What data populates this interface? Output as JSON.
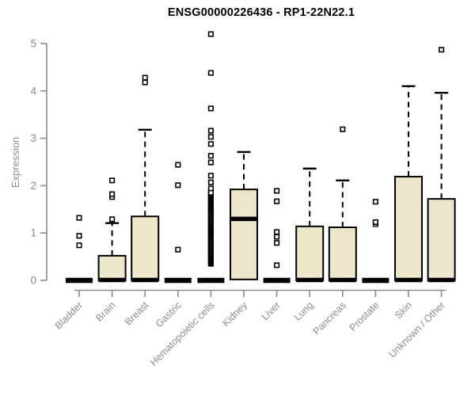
{
  "title": "ENSG00000226436 - RP1-22N22.1",
  "y_axis": {
    "label": "Expression"
  },
  "colors": {
    "background": "#ffffff",
    "box_fill": "#ede6cb",
    "box_stroke": "#000000",
    "median": "#000000",
    "whisker": "#000000",
    "outlier_stroke": "#000000",
    "axis": "#8c8c8c",
    "tick_label": "#8c8c8c",
    "title": "#000000"
  },
  "chart_data": {
    "type": "boxplot",
    "title": "ENSG00000226436 - RP1-22N22.1",
    "xlabel": "",
    "ylabel": "Expression",
    "ylim": [
      0,
      5.25
    ],
    "yticks": [
      0,
      1,
      2,
      3,
      4,
      5
    ],
    "grid": false,
    "legend": false,
    "categories": [
      "Bladder",
      "Brain",
      "Breast",
      "Gastric",
      "Hematopoietic cells",
      "Kidney",
      "Liver",
      "Lung",
      "Pancreas",
      "Prostate",
      "Skin",
      "Unknown / Other"
    ],
    "boxes": [
      {
        "category": "Bladder",
        "q1": 0,
        "median": 0,
        "q3": 0.04,
        "whisker_low": null,
        "whisker_high": null,
        "collapsed": true,
        "outliers": [
          0.74,
          0.94,
          1.32
        ]
      },
      {
        "category": "Brain",
        "q1": 0,
        "median": 0,
        "q3": 0.52,
        "whisker_low": null,
        "whisker_high": 1.21,
        "collapsed": false,
        "outliers": [
          1.29,
          1.76,
          1.82,
          2.11
        ]
      },
      {
        "category": "Breast",
        "q1": 0,
        "median": 0,
        "q3": 1.35,
        "whisker_low": null,
        "whisker_high": 3.18,
        "collapsed": false,
        "outliers": [
          4.18,
          4.28
        ]
      },
      {
        "category": "Gastric",
        "q1": 0,
        "median": 0,
        "q3": 0.04,
        "whisker_low": null,
        "whisker_high": null,
        "collapsed": true,
        "outliers": [
          0.65,
          2.01,
          2.44
        ]
      },
      {
        "category": "Hematopoietic cells",
        "q1": 0,
        "median": 0,
        "q3": 0.04,
        "whisker_low": null,
        "whisker_high": null,
        "collapsed": true,
        "outliers": [
          1.94,
          2.07,
          2.21,
          2.49,
          2.63,
          2.88,
          3.03,
          3.16,
          3.63,
          4.38,
          5.2
        ],
        "dense_outliers": {
          "min": 0.35,
          "max": 1.85,
          "count": 60
        }
      },
      {
        "category": "Kidney",
        "q1": 0.02,
        "median": 1.29,
        "q3": 1.92,
        "whisker_low": null,
        "whisker_high": 2.71,
        "collapsed": false,
        "outliers": []
      },
      {
        "category": "Liver",
        "q1": 0,
        "median": 0,
        "q3": 0.04,
        "whisker_low": null,
        "whisker_high": null,
        "collapsed": true,
        "outliers": [
          0.32,
          0.79,
          0.92,
          1.02,
          1.67,
          1.89
        ]
      },
      {
        "category": "Lung",
        "q1": 0,
        "median": 0,
        "q3": 1.14,
        "whisker_low": null,
        "whisker_high": 2.36,
        "collapsed": false,
        "outliers": []
      },
      {
        "category": "Pancreas",
        "q1": 0,
        "median": 0,
        "q3": 1.12,
        "whisker_low": null,
        "whisker_high": 2.11,
        "collapsed": false,
        "outliers": [
          3.19
        ]
      },
      {
        "category": "Prostate",
        "q1": 0,
        "median": 0,
        "q3": 0.04,
        "whisker_low": null,
        "whisker_high": null,
        "collapsed": true,
        "outliers": [
          1.19,
          1.23,
          1.66
        ]
      },
      {
        "category": "Skin",
        "q1": 0,
        "median": 0,
        "q3": 2.19,
        "whisker_low": null,
        "whisker_high": 4.1,
        "collapsed": false,
        "outliers": []
      },
      {
        "category": "Unknown / Other",
        "q1": 0,
        "median": 0,
        "q3": 1.72,
        "whisker_low": null,
        "whisker_high": 3.96,
        "collapsed": false,
        "outliers": [
          4.87
        ]
      }
    ]
  }
}
